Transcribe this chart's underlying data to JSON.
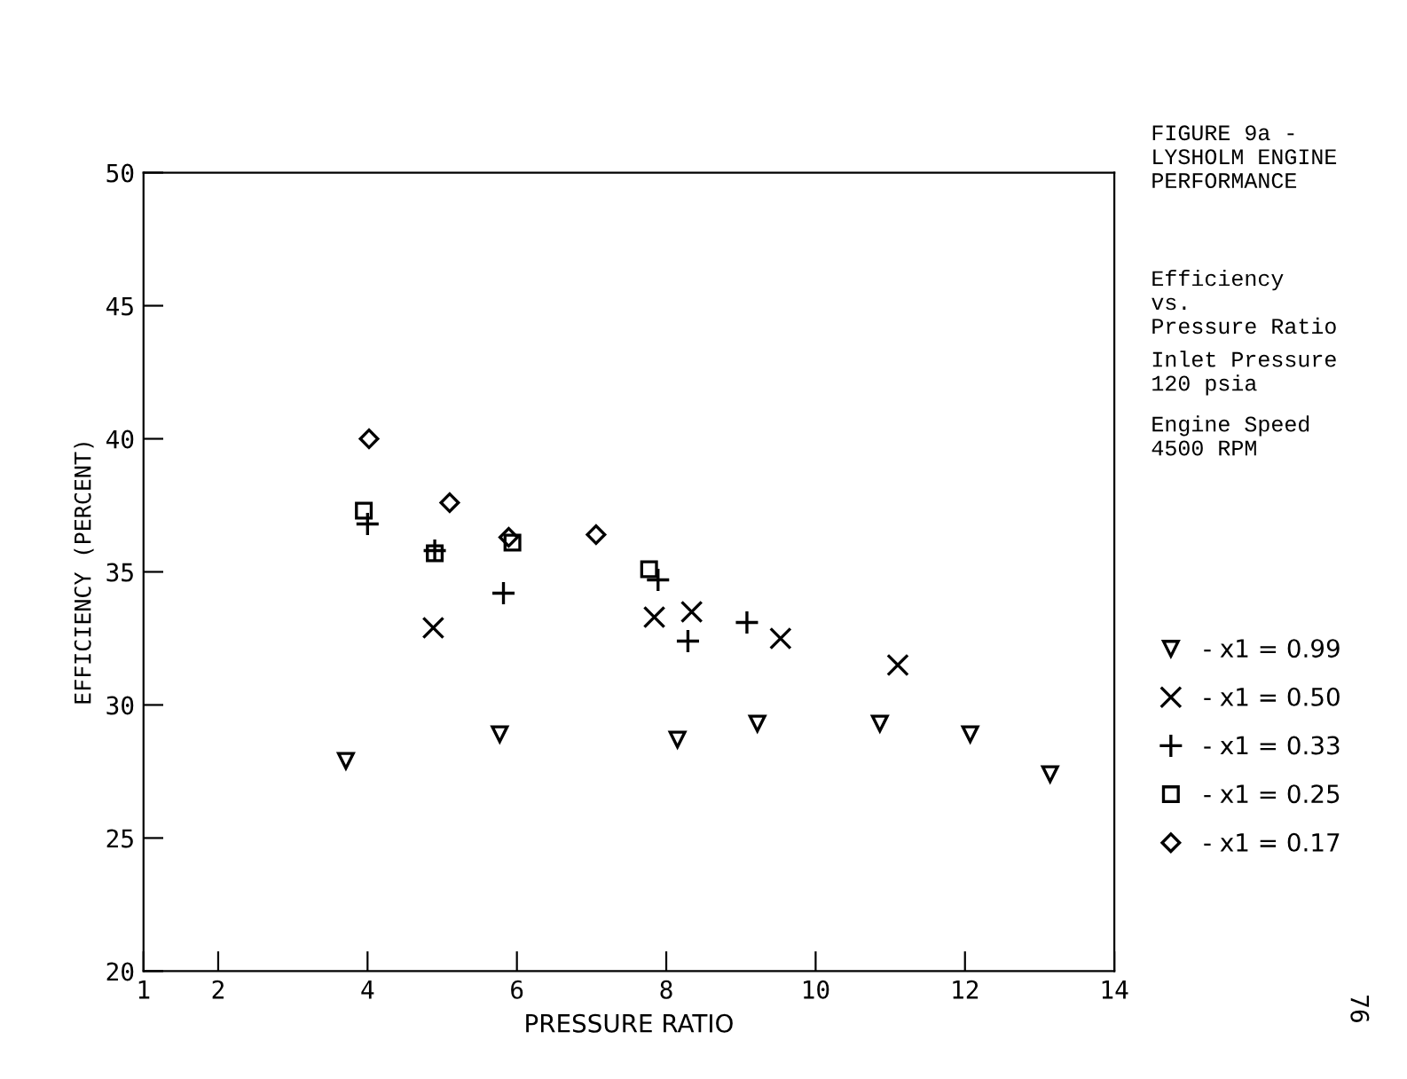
{
  "chart_data": {
    "type": "scatter",
    "title": "FIGURE 9a -\nLYSHOLM ENGINE\nPERFORMANCE",
    "xlabel": "PRESSURE RATIO",
    "ylabel": "EFFICIENCY (PERCENT)",
    "annotations": [
      "Efficiency\nvs.\nPressure Ratio",
      "Inlet Pressure\n120 psia",
      "Engine Speed\n4500 RPM",
      "76"
    ],
    "xlim": [
      1,
      14
    ],
    "xticks": [
      1,
      2,
      4,
      6,
      8,
      10,
      12,
      14
    ],
    "ylim": [
      20,
      50
    ],
    "yticks": [
      20,
      25,
      30,
      35,
      40,
      45,
      50
    ],
    "grid": false,
    "legend": "right",
    "series": [
      {
        "name": "- x1 = 0.99",
        "color": "#000000",
        "marker": "triangle",
        "x": [
          3.71,
          5.77,
          8.15,
          9.22,
          10.86,
          12.07,
          13.14
        ],
        "values": [
          27.9,
          28.9,
          28.7,
          29.3,
          29.3,
          28.9,
          27.4
        ]
      },
      {
        "name": "- x1 = 0.50",
        "color": "#000000",
        "marker": "cross",
        "x": [
          4.88,
          7.84,
          8.34,
          9.53,
          11.1
        ],
        "values": [
          32.9,
          33.3,
          33.5,
          32.5,
          31.5
        ]
      },
      {
        "name": "- x1 = 0.33",
        "color": "#000000",
        "marker": "plus",
        "x": [
          4.0,
          4.9,
          5.82,
          7.89,
          8.29,
          9.08
        ],
        "values": [
          36.8,
          35.8,
          34.2,
          34.7,
          32.4,
          33.1
        ]
      },
      {
        "name": "- x1 = 0.25",
        "color": "#000000",
        "marker": "square",
        "x": [
          3.95,
          4.9,
          5.94,
          7.77
        ],
        "values": [
          37.3,
          35.7,
          36.1,
          35.1
        ]
      },
      {
        "name": "- x1 = 0.17",
        "color": "#000000",
        "marker": "diamond",
        "x": [
          4.02,
          5.1,
          5.89,
          7.06
        ],
        "values": [
          40.0,
          37.6,
          36.3,
          36.4
        ]
      }
    ]
  }
}
